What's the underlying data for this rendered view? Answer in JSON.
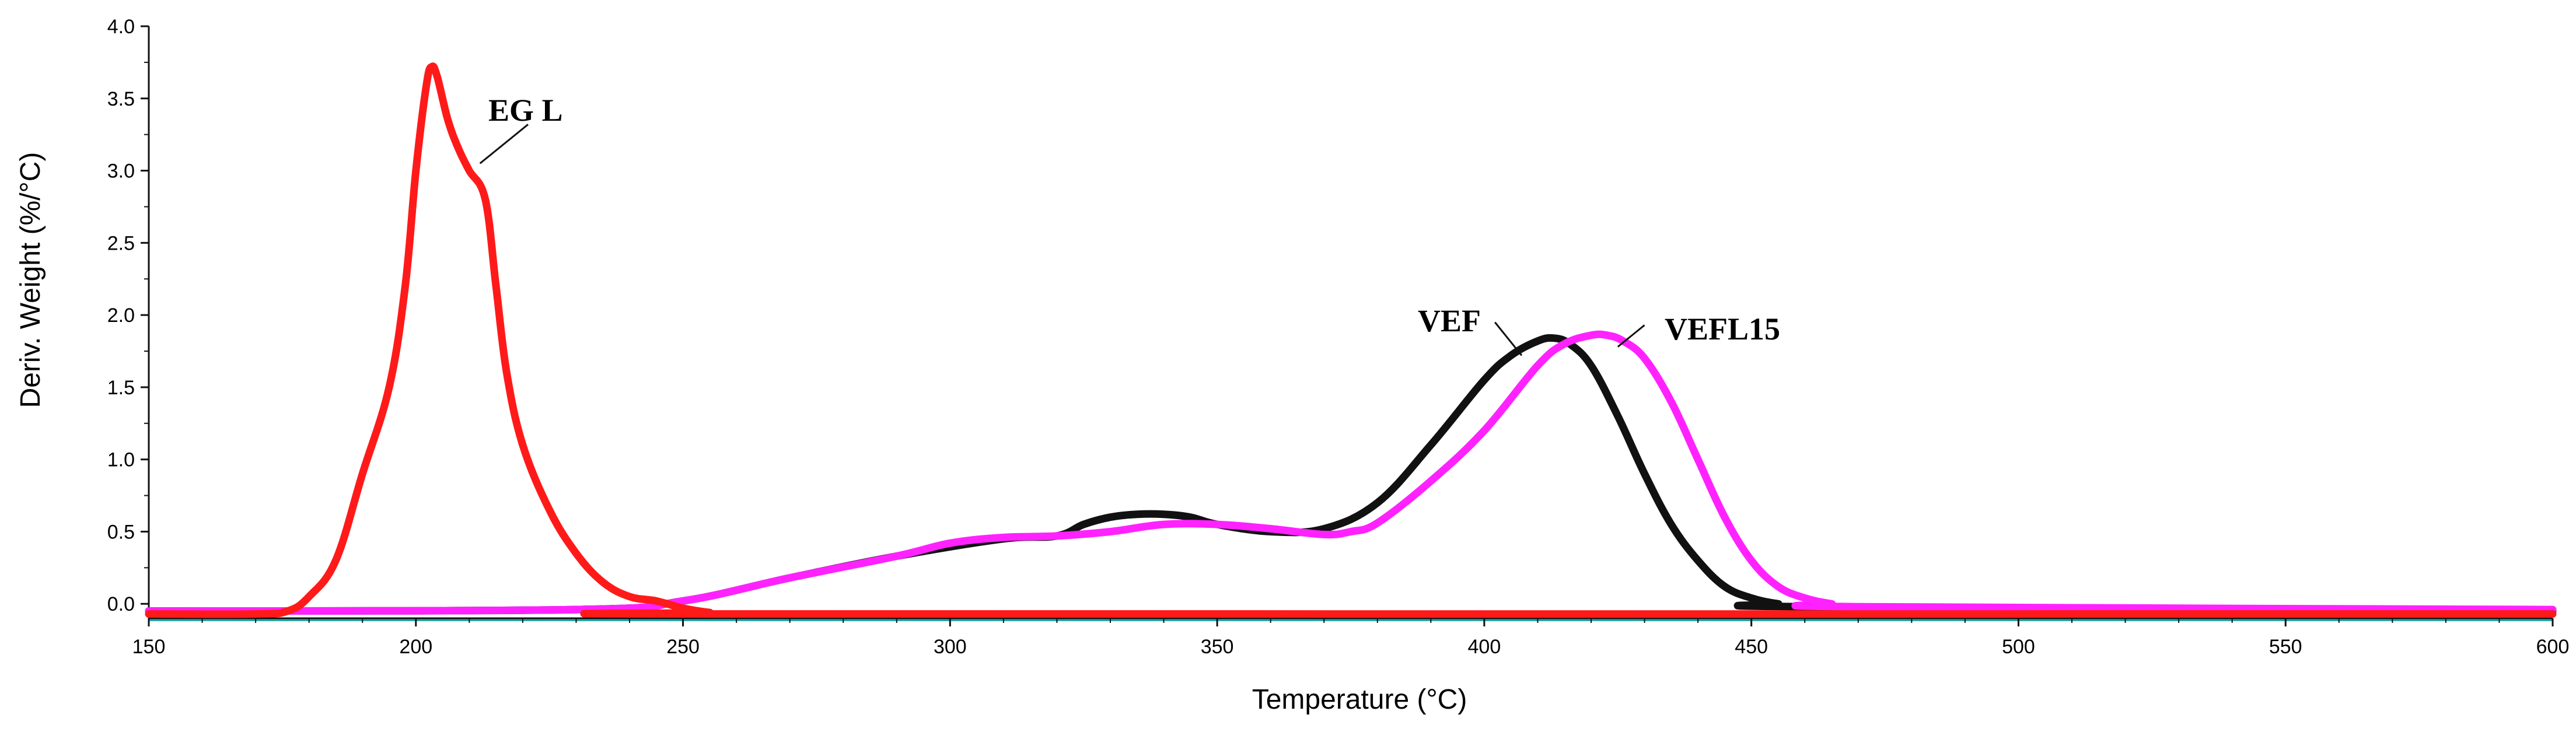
{
  "chart_data": {
    "type": "line",
    "title": "",
    "xlabel": "Temperature (°C)",
    "ylabel": "Deriv. Weight (%/°C)",
    "xlim": [
      150,
      600
    ],
    "ylim": [
      -0.1,
      4.0
    ],
    "x_ticks": [
      150,
      200,
      250,
      300,
      350,
      400,
      450,
      500,
      550,
      600
    ],
    "y_ticks": [
      0.0,
      0.5,
      1.0,
      1.5,
      2.0,
      2.5,
      3.0,
      3.5,
      4.0
    ],
    "x_tick_labels": [
      "150",
      "200",
      "250",
      "300",
      "350",
      "400",
      "450",
      "500",
      "550",
      "600"
    ],
    "y_tick_labels": [
      "0.0",
      "0.5",
      "1.0",
      "1.5",
      "2.0",
      "2.5",
      "3.0",
      "3.5",
      "4.0"
    ],
    "grid": false,
    "series": [
      {
        "name": "EG L",
        "color": "#ff1a1a",
        "x": [
          150,
          170,
          176,
          180,
          185,
          190,
          195,
          198,
          200,
          202,
          203,
          204,
          206,
          208,
          210,
          213,
          215,
          217,
          220,
          225,
          230,
          235,
          240,
          245,
          250,
          255,
          260,
          600
        ],
        "y": [
          -0.07,
          -0.07,
          -0.05,
          0.05,
          0.3,
          0.9,
          1.5,
          2.2,
          3.0,
          3.6,
          3.72,
          3.65,
          3.35,
          3.15,
          3.0,
          2.8,
          2.2,
          1.6,
          1.1,
          0.65,
          0.35,
          0.15,
          0.05,
          0.02,
          -0.03,
          -0.06,
          -0.07,
          -0.07
        ]
      },
      {
        "name": "VEF",
        "color": "#111111",
        "x": [
          150,
          230,
          250,
          270,
          290,
          310,
          320,
          325,
          330,
          335,
          340,
          345,
          350,
          360,
          370,
          380,
          390,
          400,
          405,
          410,
          413,
          416,
          420,
          425,
          430,
          435,
          440,
          445,
          450,
          455,
          460,
          600
        ],
        "y": [
          -0.05,
          -0.04,
          0.02,
          0.18,
          0.33,
          0.45,
          0.47,
          0.55,
          0.6,
          0.62,
          0.62,
          0.6,
          0.55,
          0.5,
          0.52,
          0.7,
          1.1,
          1.55,
          1.72,
          1.82,
          1.84,
          1.8,
          1.65,
          1.3,
          0.9,
          0.55,
          0.3,
          0.12,
          0.04,
          0.0,
          -0.02,
          -0.05
        ]
      },
      {
        "name": "VEFL15",
        "color": "#ff22ff",
        "x": [
          150,
          230,
          250,
          270,
          290,
          300,
          310,
          320,
          330,
          340,
          350,
          360,
          370,
          375,
          380,
          390,
          400,
          410,
          415,
          420,
          423,
          426,
          430,
          435,
          440,
          445,
          450,
          455,
          460,
          465,
          470,
          600
        ],
        "y": [
          -0.05,
          -0.04,
          0.02,
          0.18,
          0.33,
          0.42,
          0.46,
          0.47,
          0.5,
          0.55,
          0.55,
          0.52,
          0.48,
          0.5,
          0.56,
          0.85,
          1.2,
          1.65,
          1.8,
          1.86,
          1.86,
          1.82,
          1.7,
          1.4,
          1.0,
          0.6,
          0.3,
          0.12,
          0.04,
          0.0,
          -0.02,
          -0.04
        ]
      }
    ],
    "labels": [
      {
        "text": "EG L",
        "series": "EG L"
      },
      {
        "text": "VEF",
        "series": "VEF"
      },
      {
        "text": "VEFL15",
        "series": "VEFL15"
      }
    ]
  }
}
